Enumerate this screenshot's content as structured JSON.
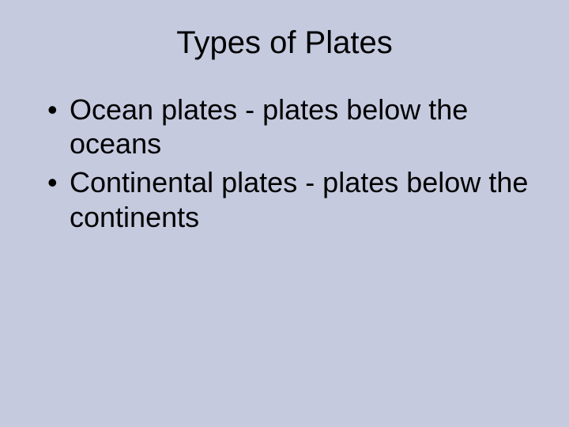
{
  "slide": {
    "background_color": "#c5cadf",
    "text_color": "#000000",
    "font_family": "Arial",
    "title": {
      "text": "Types of Plates",
      "fontsize": 40,
      "align": "center"
    },
    "bullets": {
      "fontsize": 36,
      "items": [
        "Ocean plates - plates below the oceans",
        "Continental plates - plates below the continents"
      ]
    }
  }
}
